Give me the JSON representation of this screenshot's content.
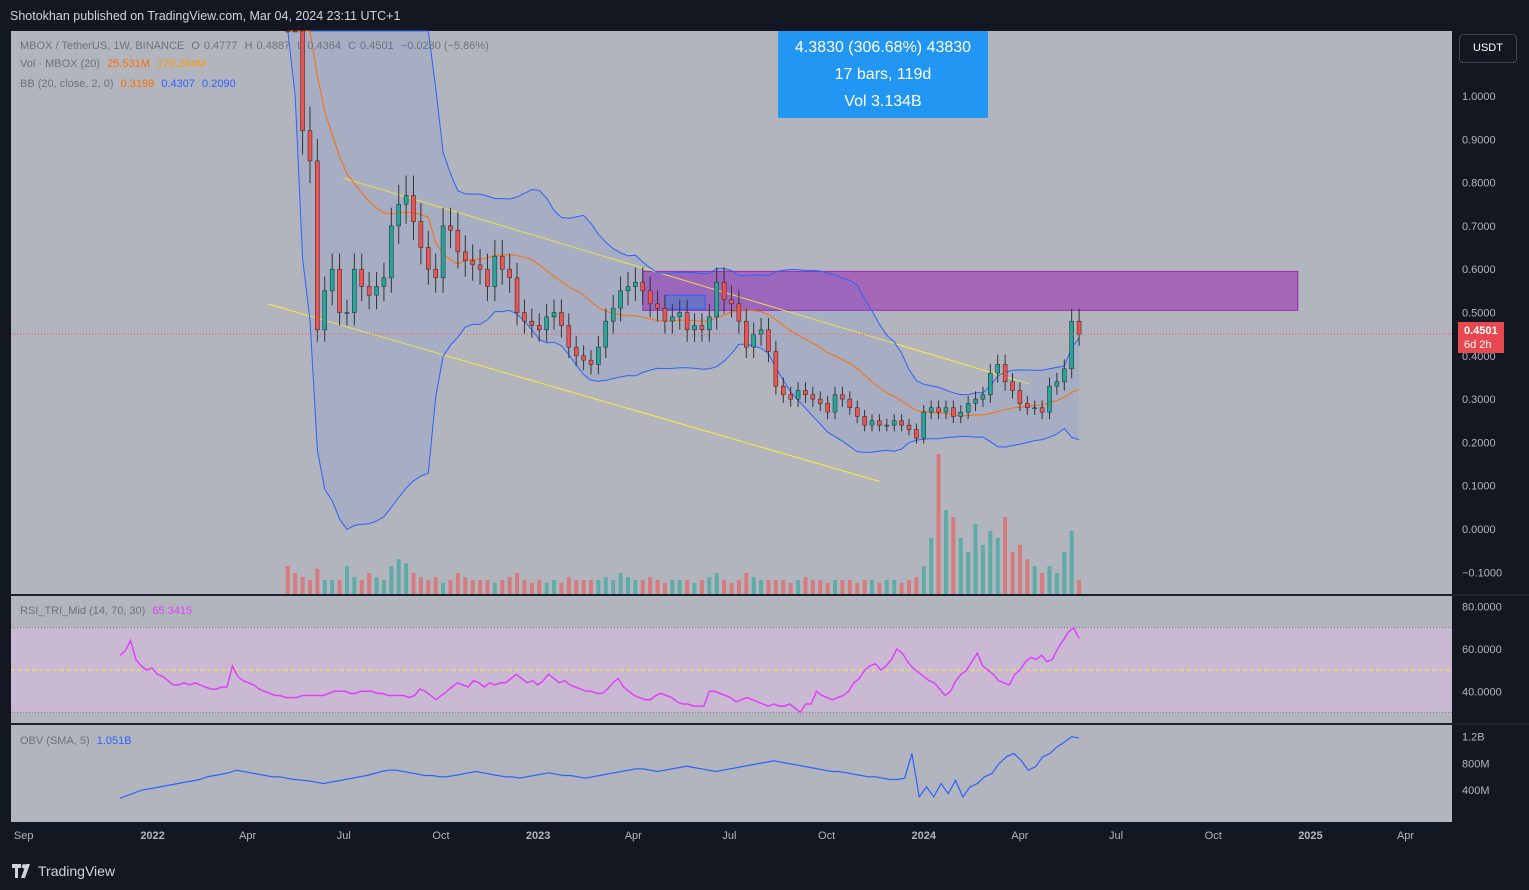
{
  "header": {
    "published": "Shotokhan published on TradingView.com, Mar 04, 2024 23:11 UTC+1"
  },
  "footer": {
    "logo_text": "TradingView"
  },
  "legend": {
    "symbol": "MBOX / TetherUS, 1W, BINANCE",
    "o": "O",
    "o_val": "0.4777",
    "h": "H",
    "h_val": "0.4887",
    "l": "L",
    "l_val": "0.4364",
    "c": "C",
    "c_val": "0.4501",
    "change": "−0.0280 (−5.86%)",
    "vol_label": "Vol · MBOX (20)",
    "vol_val1": "25.531M",
    "vol_val2": "170.264M",
    "bb_label": "BB (20, close, 2, 0)",
    "bb_mid": "0.3199",
    "bb_up": "0.4307",
    "bb_low": "0.2090",
    "rsi_label": "RSI_TRI_Mid (14, 70, 30)",
    "rsi_val": "65.3415",
    "obv_label": "OBV (SMA, 5)",
    "obv_val": "1.051B"
  },
  "measure": {
    "line1": "4.3830 (306.68%) 43830",
    "line2": "17 bars, 119d",
    "line3": "Vol 3.134B"
  },
  "currency_button": "USDT",
  "price_tag": {
    "price": "0.4501",
    "countdown": "6d 2h"
  },
  "colors": {
    "up": "#26a69a",
    "down": "#ef5350",
    "bb_band": "#2962ff",
    "bb_basis": "#ff6d00",
    "trend": "#ffeb3b",
    "zone": "#9c27b0",
    "rsi": "#e040fb",
    "obv": "#2962ff",
    "pane_bg": "#b2b5be"
  },
  "chart_data": {
    "type": "candlestick",
    "title": "MBOX / TetherUS, 1W, BINANCE",
    "price_axis_ticks": [
      "1.0000",
      "0.9000",
      "0.8000",
      "0.7000",
      "0.6000",
      "0.5000",
      "0.4000",
      "0.3000",
      "0.2000",
      "0.1000",
      "0.0000",
      "−0.1000"
    ],
    "price_ylim": [
      -0.15,
      1.15
    ],
    "rsi_ticks": [
      "80.0000",
      "60.0000",
      "40.0000"
    ],
    "rsi_ylim": [
      25,
      85
    ],
    "obv_ticks": [
      "1.2B",
      "800M",
      "400M"
    ],
    "time_axis_labels": [
      "Sep",
      "2022",
      "Apr",
      "Jul",
      "Oct",
      "2023",
      "Apr",
      "Jul",
      "Oct",
      "2024",
      "Apr",
      "Jul",
      "Oct",
      "2025",
      "Apr"
    ],
    "time_axis_dates": [
      "2021-09-01",
      "2022-01-01",
      "2022-04-01",
      "2022-07-01",
      "2022-10-01",
      "2023-01-01",
      "2023-04-01",
      "2023-07-01",
      "2023-10-01",
      "2024-01-01",
      "2024-04-01",
      "2024-07-01",
      "2024-10-01",
      "2025-01-01",
      "2025-04-01"
    ],
    "x_range": [
      "2021-08-20",
      "2025-05-15"
    ],
    "first_bar_date": "2022-05-09",
    "bar_interval": "1W",
    "candles_close": [
      1.75,
      1.25,
      0.92,
      0.85,
      0.46,
      0.55,
      0.6,
      0.5,
      0.5,
      0.6,
      0.56,
      0.54,
      0.56,
      0.58,
      0.7,
      0.75,
      0.77,
      0.71,
      0.65,
      0.6,
      0.58,
      0.7,
      0.69,
      0.64,
      0.62,
      0.61,
      0.6,
      0.56,
      0.63,
      0.6,
      0.58,
      0.5,
      0.48,
      0.47,
      0.46,
      0.49,
      0.5,
      0.47,
      0.42,
      0.4,
      0.39,
      0.38,
      0.42,
      0.48,
      0.51,
      0.55,
      0.56,
      0.57,
      0.55,
      0.52,
      0.51,
      0.48,
      0.49,
      0.5,
      0.46,
      0.47,
      0.46,
      0.49,
      0.57,
      0.53,
      0.52,
      0.48,
      0.42,
      0.45,
      0.46,
      0.41,
      0.33,
      0.31,
      0.3,
      0.32,
      0.31,
      0.3,
      0.29,
      0.27,
      0.31,
      0.3,
      0.28,
      0.26,
      0.24,
      0.25,
      0.24,
      0.24,
      0.25,
      0.24,
      0.23,
      0.21,
      0.27,
      0.28,
      0.27,
      0.28,
      0.26,
      0.27,
      0.29,
      0.3,
      0.31,
      0.36,
      0.38,
      0.34,
      0.32,
      0.29,
      0.28,
      0.28,
      0.27,
      0.33,
      0.34,
      0.37,
      0.48,
      0.4501
    ],
    "volume_scale": [
      0.2,
      0.15,
      0.12,
      0.1,
      0.18,
      0.1,
      0.1,
      0.1,
      0.2,
      0.12,
      0.1,
      0.15,
      0.12,
      0.1,
      0.2,
      0.25,
      0.22,
      0.15,
      0.12,
      0.1,
      0.12,
      0.08,
      0.1,
      0.15,
      0.12,
      0.1,
      0.1,
      0.1,
      0.08,
      0.1,
      0.12,
      0.15,
      0.1,
      0.08,
      0.1,
      0.08,
      0.1,
      0.08,
      0.12,
      0.1,
      0.1,
      0.1,
      0.1,
      0.12,
      0.1,
      0.15,
      0.12,
      0.1,
      0.1,
      0.12,
      0.1,
      0.08,
      0.1,
      0.1,
      0.1,
      0.08,
      0.1,
      0.12,
      0.15,
      0.1,
      0.08,
      0.1,
      0.15,
      0.12,
      0.1,
      0.1,
      0.1,
      0.1,
      0.08,
      0.1,
      0.12,
      0.1,
      0.1,
      0.08,
      0.1,
      0.1,
      0.1,
      0.08,
      0.1,
      0.1,
      0.08,
      0.1,
      0.1,
      0.08,
      0.1,
      0.12,
      0.2,
      0.4,
      1.0,
      0.6,
      0.55,
      0.4,
      0.3,
      0.5,
      0.35,
      0.45,
      0.4,
      0.55,
      0.3,
      0.35,
      0.25,
      0.2,
      0.15,
      0.2,
      0.15,
      0.3,
      0.45,
      0.1
    ],
    "rsi": [
      57,
      59,
      64,
      55,
      52,
      50,
      51,
      48,
      47,
      45,
      43,
      43,
      44,
      43,
      44,
      43,
      42,
      41,
      41,
      42,
      42,
      52,
      47,
      45,
      44,
      43,
      41,
      40,
      39,
      38,
      38,
      37,
      37,
      37,
      38,
      38,
      38,
      38,
      38,
      39,
      40,
      40,
      40,
      39,
      39,
      40,
      40,
      40,
      39,
      39,
      38,
      38,
      38,
      38,
      37,
      38,
      41,
      40,
      38,
      36,
      38,
      40,
      42,
      44,
      43,
      42,
      45,
      44,
      42,
      44,
      43,
      44,
      44,
      46,
      48,
      46,
      44,
      45,
      43,
      45,
      48,
      46,
      44,
      45,
      43,
      42,
      41,
      40,
      40,
      39,
      39,
      41,
      44,
      46,
      42,
      40,
      38,
      37,
      36,
      36,
      38,
      39,
      38,
      37,
      35,
      34,
      34,
      33,
      33,
      33,
      40,
      40,
      39,
      38,
      37,
      35,
      36,
      37,
      36,
      35,
      34,
      33,
      34,
      33,
      33,
      34,
      32,
      30,
      34,
      34,
      40,
      38,
      37,
      36,
      37,
      38,
      40,
      44,
      46,
      50,
      52,
      53,
      50,
      52,
      55,
      60,
      58,
      54,
      51,
      49,
      47,
      45,
      44,
      41,
      38,
      40,
      45,
      48,
      50,
      54,
      58,
      52,
      50,
      48,
      45,
      44,
      43,
      48,
      50,
      54,
      56,
      55,
      57,
      54,
      55,
      60,
      64,
      68,
      70,
      65
    ],
    "obv": [
      0.28,
      0.32,
      0.36,
      0.4,
      0.42,
      0.44,
      0.46,
      0.48,
      0.5,
      0.52,
      0.54,
      0.56,
      0.6,
      0.62,
      0.64,
      0.66,
      0.7,
      0.68,
      0.66,
      0.64,
      0.62,
      0.6,
      0.6,
      0.58,
      0.56,
      0.55,
      0.54,
      0.52,
      0.5,
      0.52,
      0.54,
      0.56,
      0.58,
      0.6,
      0.62,
      0.65,
      0.68,
      0.7,
      0.7,
      0.68,
      0.66,
      0.64,
      0.62,
      0.62,
      0.6,
      0.6,
      0.62,
      0.64,
      0.66,
      0.68,
      0.66,
      0.64,
      0.62,
      0.6,
      0.6,
      0.58,
      0.6,
      0.62,
      0.64,
      0.66,
      0.64,
      0.62,
      0.62,
      0.6,
      0.58,
      0.6,
      0.62,
      0.64,
      0.66,
      0.68,
      0.7,
      0.72,
      0.72,
      0.7,
      0.68,
      0.7,
      0.72,
      0.74,
      0.76,
      0.74,
      0.72,
      0.7,
      0.68,
      0.7,
      0.72,
      0.74,
      0.76,
      0.78,
      0.8,
      0.82,
      0.84,
      0.82,
      0.8,
      0.78,
      0.76,
      0.74,
      0.72,
      0.7,
      0.68,
      0.68,
      0.66,
      0.64,
      0.62,
      0.6,
      0.6,
      0.58,
      0.56,
      0.56,
      0.58,
      0.95,
      0.3,
      0.45,
      0.3,
      0.5,
      0.35,
      0.55,
      0.3,
      0.45,
      0.5,
      0.6,
      0.65,
      0.8,
      0.9,
      0.95,
      0.85,
      0.7,
      0.75,
      0.9,
      0.95,
      1.05,
      1.12,
      1.2,
      1.18
    ]
  }
}
